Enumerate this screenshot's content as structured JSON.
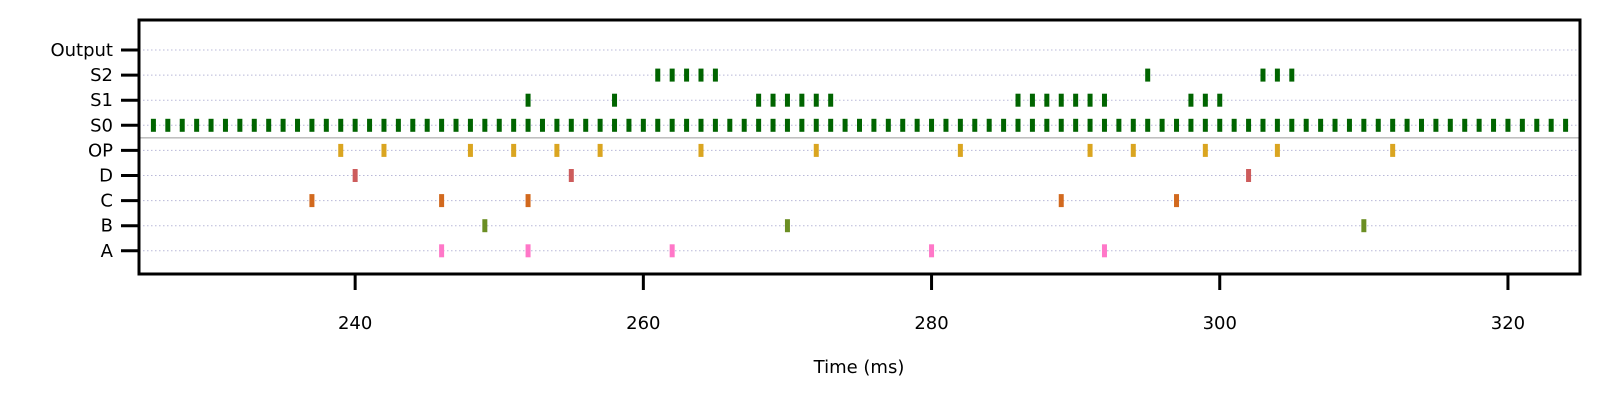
{
  "chart_data": {
    "type": "scatter",
    "title": "",
    "xlabel": "Time (ms)",
    "ylabel": "",
    "xlim": [
      225,
      325
    ],
    "x_ticks": [
      240,
      260,
      280,
      300,
      320
    ],
    "x_tick_labels": [
      "240",
      "260",
      "280",
      "300",
      "320"
    ],
    "grid": "horizontal dotted",
    "rows": [
      "A",
      "B",
      "C",
      "D",
      "OP",
      "S0",
      "S1",
      "S2",
      "Output"
    ],
    "series": [
      {
        "name": "A",
        "color": "#ff77c8",
        "x": [
          246,
          252,
          262,
          280,
          292
        ]
      },
      {
        "name": "B",
        "color": "#6b8e23",
        "x": [
          249,
          270,
          310
        ]
      },
      {
        "name": "C",
        "color": "#d2691e",
        "x": [
          237,
          246,
          252,
          289,
          297
        ]
      },
      {
        "name": "D",
        "color": "#cd5c5c",
        "x": [
          240,
          255,
          302
        ]
      },
      {
        "name": "OP",
        "color": "#daa520",
        "x": [
          239,
          242,
          248,
          251,
          254,
          257,
          264,
          272,
          282,
          291,
          294,
          299,
          304,
          312
        ]
      },
      {
        "name": "S0",
        "color": "#006400",
        "x": [
          226,
          227,
          228,
          229,
          230,
          231,
          232,
          233,
          234,
          235,
          236,
          237,
          238,
          239,
          240,
          241,
          242,
          243,
          244,
          245,
          246,
          247,
          248,
          249,
          250,
          251,
          252,
          253,
          254,
          255,
          256,
          257,
          258,
          259,
          260,
          261,
          262,
          263,
          264,
          265,
          266,
          267,
          268,
          269,
          270,
          271,
          272,
          273,
          274,
          275,
          276,
          277,
          278,
          279,
          280,
          281,
          282,
          283,
          284,
          285,
          286,
          287,
          288,
          289,
          290,
          291,
          292,
          293,
          294,
          295,
          296,
          297,
          298,
          299,
          300,
          301,
          302,
          303,
          304,
          305,
          306,
          307,
          308,
          309,
          310,
          311,
          312,
          313,
          314,
          315,
          316,
          317,
          318,
          319,
          320,
          321,
          322,
          323,
          324
        ]
      },
      {
        "name": "S1",
        "color": "#006400",
        "x": [
          252,
          258,
          268,
          269,
          270,
          271,
          272,
          273,
          286,
          287,
          288,
          289,
          290,
          291,
          292,
          298,
          299,
          300
        ]
      },
      {
        "name": "S2",
        "color": "#006400",
        "x": [
          261,
          262,
          263,
          264,
          265,
          295,
          303,
          304,
          305
        ]
      },
      {
        "name": "Output",
        "color": "#006400",
        "x": []
      }
    ]
  }
}
